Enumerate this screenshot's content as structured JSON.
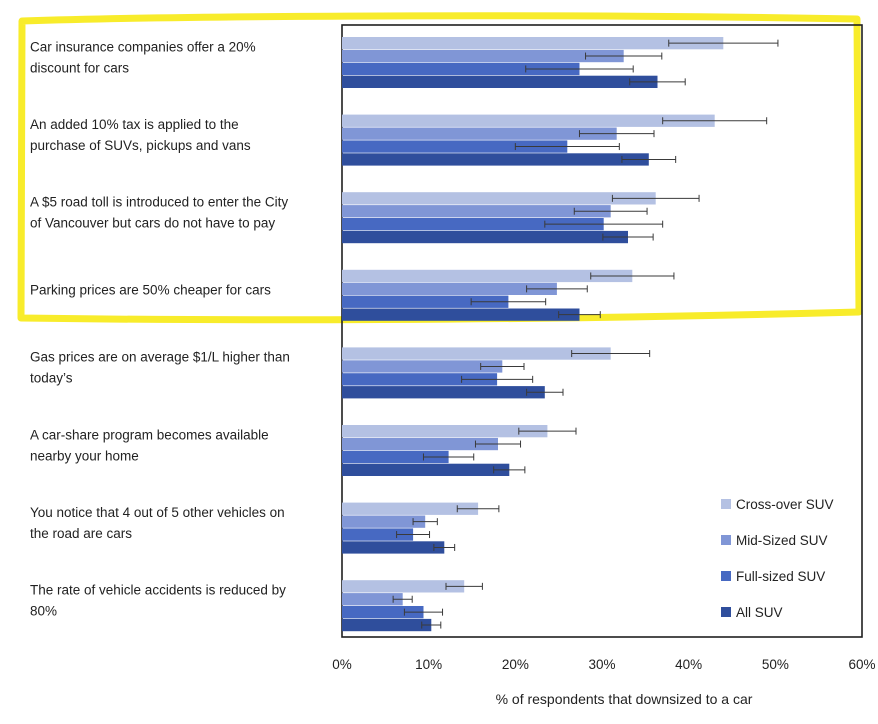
{
  "chart_data": {
    "type": "bar",
    "orientation": "horizontal",
    "title": "",
    "xlabel": "% of respondents that downsized to a car",
    "ylabel": "",
    "xlim": [
      0,
      60
    ],
    "xticks": [
      0,
      10,
      20,
      30,
      40,
      50,
      60
    ],
    "xtick_labels": [
      "0%",
      "10%",
      "20%",
      "30%",
      "40%",
      "50%",
      "60%"
    ],
    "legend_position": "bottom-right",
    "categories": [
      [
        "Car insurance companies offer a 20%",
        "discount for cars"
      ],
      [
        "An added 10% tax is applied to the",
        "purchase of SUVs, pickups and vans"
      ],
      [
        "A $5 road toll is introduced to enter the City",
        "of Vancouver but cars do not have to pay"
      ],
      [
        "Parking prices are 50% cheaper for cars"
      ],
      [
        "Gas prices are on average $1/L higher than",
        "today’s"
      ],
      [
        "A car-share program becomes available",
        "nearby your home"
      ],
      [
        "You notice that 4 out of 5 other vehicles on",
        "the road are cars"
      ],
      [
        "The rate of vehicle accidents is reduced by",
        "80%"
      ]
    ],
    "series": [
      {
        "name": "Cross-over SUV",
        "color": "#b4c1e3",
        "values": [
          44.0,
          43.0,
          36.2,
          33.5,
          31.0,
          23.7,
          15.7,
          14.1
        ],
        "errors": [
          6.3,
          6.0,
          5.0,
          4.8,
          4.5,
          3.3,
          2.4,
          2.1
        ]
      },
      {
        "name": "Mid-Sized SUV",
        "color": "#8096d6",
        "values": [
          32.5,
          31.7,
          31.0,
          24.8,
          18.5,
          18.0,
          9.6,
          7.0
        ],
        "errors": [
          4.4,
          4.3,
          4.2,
          3.5,
          2.5,
          2.6,
          1.4,
          1.1
        ]
      },
      {
        "name": "Full-sized SUV",
        "color": "#4769c2",
        "values": [
          27.4,
          26.0,
          30.2,
          19.2,
          17.9,
          12.3,
          8.2,
          9.4
        ],
        "errors": [
          6.2,
          6.0,
          6.8,
          4.3,
          4.1,
          2.9,
          1.9,
          2.2
        ]
      },
      {
        "name": "All SUV",
        "color": "#2f4e9c",
        "values": [
          36.4,
          35.4,
          33.0,
          27.4,
          23.4,
          19.3,
          11.8,
          10.3
        ],
        "errors": [
          3.2,
          3.1,
          2.9,
          2.4,
          2.1,
          1.8,
          1.2,
          1.1
        ]
      }
    ],
    "highlight": {
      "color": "#f7ea14",
      "covers_categories": [
        0,
        1,
        2,
        3
      ]
    }
  }
}
